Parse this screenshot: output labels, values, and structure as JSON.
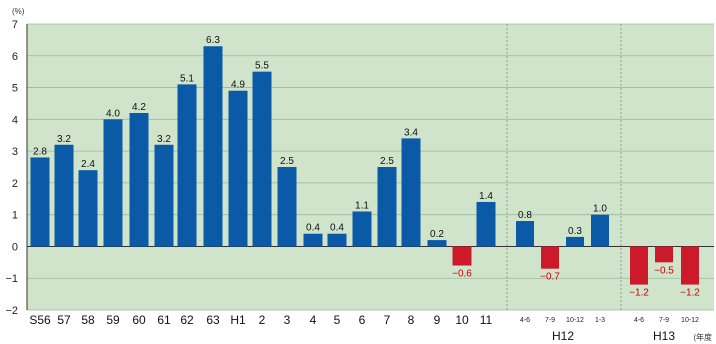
{
  "chart_data": {
    "type": "bar",
    "unit": "(%)",
    "ylim": [
      -2,
      7
    ],
    "yticks": [
      7,
      6,
      5,
      4,
      3,
      2,
      1,
      0,
      -1,
      -2
    ],
    "grid": true,
    "categories": [
      "S56",
      "57",
      "58",
      "59",
      "60",
      "61",
      "62",
      "63",
      "H1",
      "2",
      "3",
      "4",
      "5",
      "6",
      "7",
      "8",
      "9",
      "10",
      "11",
      "4-6",
      "7-9",
      "10-12",
      "1-3",
      "4-6",
      "7-9",
      "10-12"
    ],
    "values": [
      2.8,
      3.2,
      2.4,
      4.0,
      4.2,
      3.2,
      5.1,
      6.3,
      4.9,
      5.5,
      2.5,
      0.4,
      0.4,
      1.1,
      2.5,
      3.4,
      0.2,
      -0.6,
      1.4,
      0.8,
      -0.7,
      0.3,
      1.0,
      -1.2,
      -0.5,
      -1.2
    ],
    "data_labels": [
      "2.8",
      "3.2",
      "2.4",
      "4.0",
      "4.2",
      "3.2",
      "5.1",
      "6.3",
      "4.9",
      "5.5",
      "2.5",
      "0.4",
      "0.4",
      "1.1",
      "2.5",
      "3.4",
      "0.2",
      "−0.6",
      "1.4",
      "0.8",
      "−0.7",
      "0.3",
      "1.0",
      "−1.2",
      "−0.5",
      "−1.2"
    ],
    "groups": [
      {
        "label": "H12",
        "categories": [
          "4-6",
          "7-9",
          "10-12",
          "1-3"
        ]
      },
      {
        "label": "H13",
        "categories": [
          "4-6",
          "7-9",
          "10-12"
        ]
      }
    ],
    "trailing_note": "(年度",
    "colors": {
      "positive": "#0a5aa8",
      "negative": "#cc1a2a",
      "background": "#cfe4cb",
      "grid": "#9bb89a"
    }
  }
}
